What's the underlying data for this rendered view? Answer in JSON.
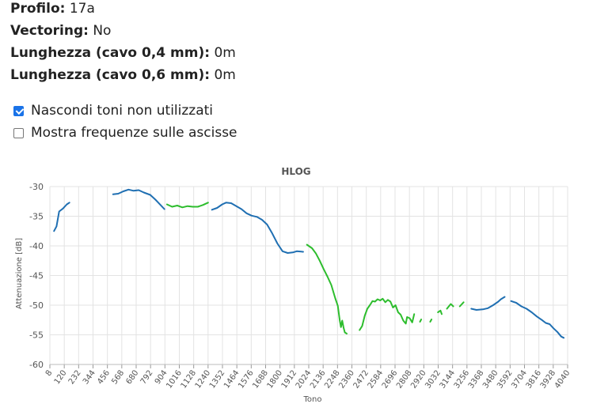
{
  "info": [
    {
      "label": "Profilo",
      "value": "17a"
    },
    {
      "label": "Vectoring",
      "value": "No"
    },
    {
      "label": "Lunghezza (cavo 0,4 mm)",
      "value": "0m"
    },
    {
      "label": "Lunghezza (cavo 0,6 mm)",
      "value": "0m"
    }
  ],
  "options": [
    {
      "label": "Nascondi toni non utilizzati",
      "checked": true
    },
    {
      "label": "Mostra frequenze sulle ascisse",
      "checked": false
    }
  ],
  "colors": {
    "upstream_series": "#1f6fb2",
    "downstream_series": "#2dbd2d",
    "grid": "#e3e3e3"
  },
  "chart_data": {
    "type": "line",
    "title": "HLOG",
    "xlabel": "Tono",
    "ylabel": "Attenuazione [dB]",
    "xlim": [
      8,
      4040
    ],
    "ylim": [
      -60,
      -30
    ],
    "xticks": [
      "8",
      "120",
      "232",
      "344",
      "456",
      "568",
      "680",
      "792",
      "904",
      "1016",
      "1128",
      "1240",
      "1352",
      "1464",
      "1576",
      "1688",
      "1800",
      "1912",
      "2024",
      "2136",
      "2248",
      "2360",
      "2472",
      "2584",
      "2696",
      "2808",
      "2920",
      "3032",
      "3144",
      "3256",
      "3368",
      "3480",
      "3592",
      "3704",
      "3816",
      "3928",
      "4040"
    ],
    "yticks": [
      "-30",
      "-35",
      "-40",
      "-45",
      "-50",
      "-55",
      "-60"
    ],
    "grid": true,
    "legend": "none",
    "series": [
      {
        "color": "blue",
        "points": [
          [
            40,
            -37.5
          ],
          [
            60,
            -36.7
          ],
          [
            80,
            -34.2
          ],
          [
            110,
            -33.7
          ],
          [
            140,
            -33.0
          ],
          [
            160,
            -32.7
          ]
        ]
      },
      {
        "color": "blue",
        "points": [
          [
            500,
            -31.3
          ],
          [
            540,
            -31.2
          ],
          [
            580,
            -30.8
          ],
          [
            620,
            -30.5
          ],
          [
            660,
            -30.7
          ],
          [
            700,
            -30.6
          ],
          [
            740,
            -31.0
          ],
          [
            790,
            -31.4
          ],
          [
            830,
            -32.2
          ],
          [
            870,
            -33.1
          ],
          [
            900,
            -33.8
          ]
        ]
      },
      {
        "color": "green",
        "points": [
          [
            920,
            -33.0
          ],
          [
            960,
            -33.4
          ],
          [
            1000,
            -33.2
          ],
          [
            1040,
            -33.5
          ],
          [
            1080,
            -33.3
          ],
          [
            1120,
            -33.4
          ],
          [
            1160,
            -33.4
          ],
          [
            1200,
            -33.1
          ],
          [
            1240,
            -32.7
          ]
        ]
      },
      {
        "color": "blue",
        "points": [
          [
            1270,
            -33.9
          ],
          [
            1310,
            -33.6
          ],
          [
            1350,
            -33.0
          ],
          [
            1380,
            -32.7
          ],
          [
            1420,
            -32.8
          ],
          [
            1460,
            -33.3
          ],
          [
            1500,
            -33.8
          ],
          [
            1540,
            -34.5
          ],
          [
            1580,
            -34.9
          ],
          [
            1620,
            -35.1
          ],
          [
            1660,
            -35.6
          ],
          [
            1700,
            -36.4
          ],
          [
            1740,
            -37.9
          ],
          [
            1780,
            -39.6
          ],
          [
            1820,
            -40.9
          ],
          [
            1860,
            -41.2
          ],
          [
            1900,
            -41.1
          ],
          [
            1930,
            -40.9
          ],
          [
            1980,
            -41.0
          ]
        ]
      },
      {
        "color": "green",
        "points": [
          [
            2010,
            -39.8
          ],
          [
            2050,
            -40.4
          ],
          [
            2080,
            -41.3
          ],
          [
            2110,
            -42.5
          ],
          [
            2140,
            -43.9
          ],
          [
            2170,
            -45.2
          ],
          [
            2200,
            -46.6
          ],
          [
            2230,
            -48.8
          ],
          [
            2250,
            -50.1
          ],
          [
            2265,
            -52.5
          ],
          [
            2275,
            -53.7
          ],
          [
            2285,
            -52.6
          ],
          [
            2295,
            -53.8
          ],
          [
            2305,
            -54.6
          ],
          [
            2320,
            -54.8
          ]
        ]
      },
      {
        "color": "green",
        "points": [
          [
            2420,
            -54.2
          ],
          [
            2440,
            -53.5
          ],
          [
            2460,
            -51.8
          ],
          [
            2480,
            -50.6
          ],
          [
            2500,
            -50.0
          ],
          [
            2520,
            -49.3
          ],
          [
            2540,
            -49.4
          ],
          [
            2560,
            -49.0
          ],
          [
            2580,
            -49.2
          ],
          [
            2600,
            -48.9
          ],
          [
            2620,
            -49.5
          ],
          [
            2640,
            -49.1
          ],
          [
            2660,
            -49.4
          ],
          [
            2680,
            -50.4
          ],
          [
            2700,
            -50.0
          ],
          [
            2720,
            -51.2
          ],
          [
            2740,
            -51.6
          ],
          [
            2760,
            -52.6
          ],
          [
            2780,
            -53.1
          ],
          [
            2790,
            -52.0
          ],
          [
            2810,
            -52.2
          ],
          [
            2830,
            -52.9
          ],
          [
            2845,
            -51.5
          ]
        ]
      },
      {
        "color": "green",
        "points": [
          [
            2890,
            -52.8
          ],
          [
            2900,
            -52.4
          ]
        ]
      },
      {
        "color": "green",
        "points": [
          [
            2970,
            -52.8
          ],
          [
            2980,
            -52.4
          ]
        ]
      },
      {
        "color": "green",
        "points": [
          [
            3030,
            -51.2
          ],
          [
            3050,
            -50.9
          ],
          [
            3060,
            -51.5
          ]
        ]
      },
      {
        "color": "green",
        "points": [
          [
            3100,
            -50.6
          ],
          [
            3130,
            -49.8
          ],
          [
            3150,
            -50.2
          ]
        ]
      },
      {
        "color": "green",
        "points": [
          [
            3200,
            -50.2
          ],
          [
            3230,
            -49.5
          ]
        ]
      },
      {
        "color": "blue",
        "points": [
          [
            3290,
            -50.6
          ],
          [
            3330,
            -50.8
          ],
          [
            3380,
            -50.7
          ],
          [
            3420,
            -50.5
          ],
          [
            3460,
            -50.0
          ],
          [
            3500,
            -49.4
          ],
          [
            3520,
            -49.0
          ],
          [
            3550,
            -48.6
          ]
        ]
      },
      {
        "color": "blue",
        "points": [
          [
            3600,
            -49.3
          ],
          [
            3640,
            -49.6
          ],
          [
            3680,
            -50.2
          ],
          [
            3720,
            -50.6
          ],
          [
            3760,
            -51.2
          ],
          [
            3800,
            -51.9
          ],
          [
            3840,
            -52.5
          ],
          [
            3870,
            -53.0
          ],
          [
            3900,
            -53.2
          ],
          [
            3930,
            -53.9
          ],
          [
            3960,
            -54.5
          ],
          [
            3990,
            -55.3
          ],
          [
            4010,
            -55.5
          ]
        ]
      }
    ]
  }
}
